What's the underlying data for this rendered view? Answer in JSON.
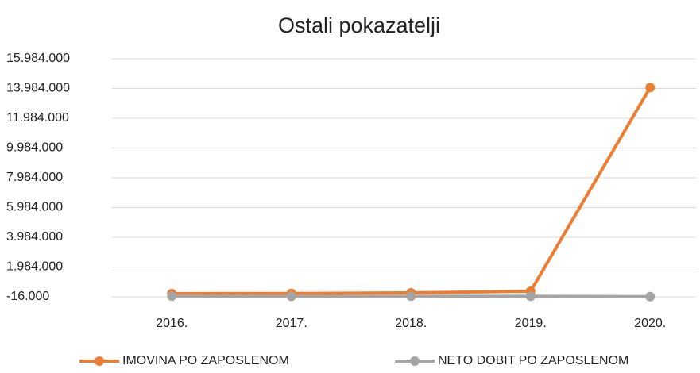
{
  "chart_data": {
    "type": "line",
    "title": "Ostali pokazatelji",
    "categories": [
      "2016.",
      "2017.",
      "2018.",
      "2019.",
      "2020."
    ],
    "series": [
      {
        "name": "IMOVINA PO ZAPOSLENOM",
        "color": "#ed7d31",
        "values": [
          200000,
          210000,
          250000,
          360000,
          14050000
        ]
      },
      {
        "name": "NETO DOBIT PO ZAPOSLENOM",
        "color": "#a5a5a5",
        "values": [
          30000,
          20000,
          25000,
          15000,
          0
        ]
      }
    ],
    "ylim": [
      -16000,
      15984000
    ],
    "yticks": [
      {
        "value": -16000,
        "label": "-16.000"
      },
      {
        "value": 1984000,
        "label": "1.984.000"
      },
      {
        "value": 3984000,
        "label": "3.984.000"
      },
      {
        "value": 5984000,
        "label": "5.984.000"
      },
      {
        "value": 7984000,
        "label": "7.984.000"
      },
      {
        "value": 9984000,
        "label": "9.984.000"
      },
      {
        "value": 11984000,
        "label": "11.984.000"
      },
      {
        "value": 13984000,
        "label": "13.984.000"
      },
      {
        "value": 15984000,
        "label": "15.984.000"
      }
    ],
    "grid": true,
    "legend": "bottom"
  }
}
